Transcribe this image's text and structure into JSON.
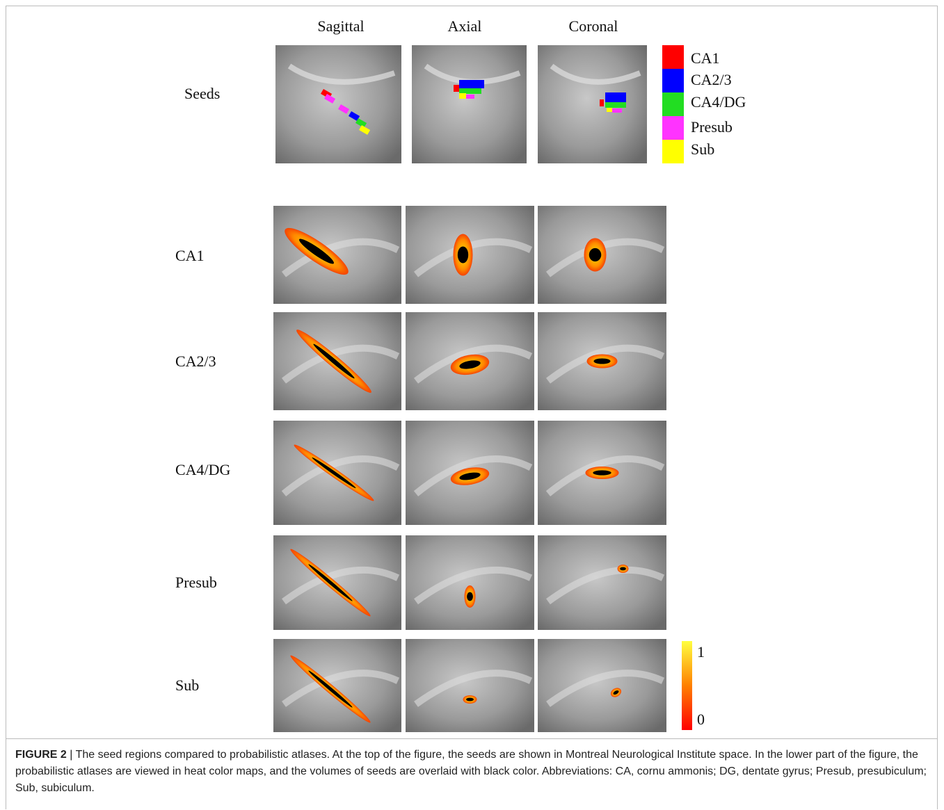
{
  "columns": [
    "Sagittal",
    "Axial",
    "Coronal"
  ],
  "seeds_label": "Seeds",
  "legend": [
    {
      "name": "CA1",
      "color": "#ff0000"
    },
    {
      "name": "CA2/3",
      "color": "#0000ff"
    },
    {
      "name": "CA4/DG",
      "color": "#22dd22"
    },
    {
      "name": "Presub",
      "color": "#ff33ff"
    },
    {
      "name": "Sub",
      "color": "#ffff00"
    }
  ],
  "rows": [
    "CA1",
    "CA2/3",
    "CA4/DG",
    "Presub",
    "Sub"
  ],
  "colorbar": {
    "max": "1",
    "min": "0"
  },
  "caption": {
    "label": "FIGURE 2",
    "text": "| The seed regions compared to probabilistic atlases. At the top of the figure, the seeds are shown in Montreal Neurological Institute space. In the lower part of the figure, the probabilistic atlases are viewed in heat color maps, and the volumes of seeds are overlaid with black color. Abbreviations: CA, cornu ammonis; DG, dentate gyrus; Presub, presubiculum; Sub, subiculum."
  }
}
